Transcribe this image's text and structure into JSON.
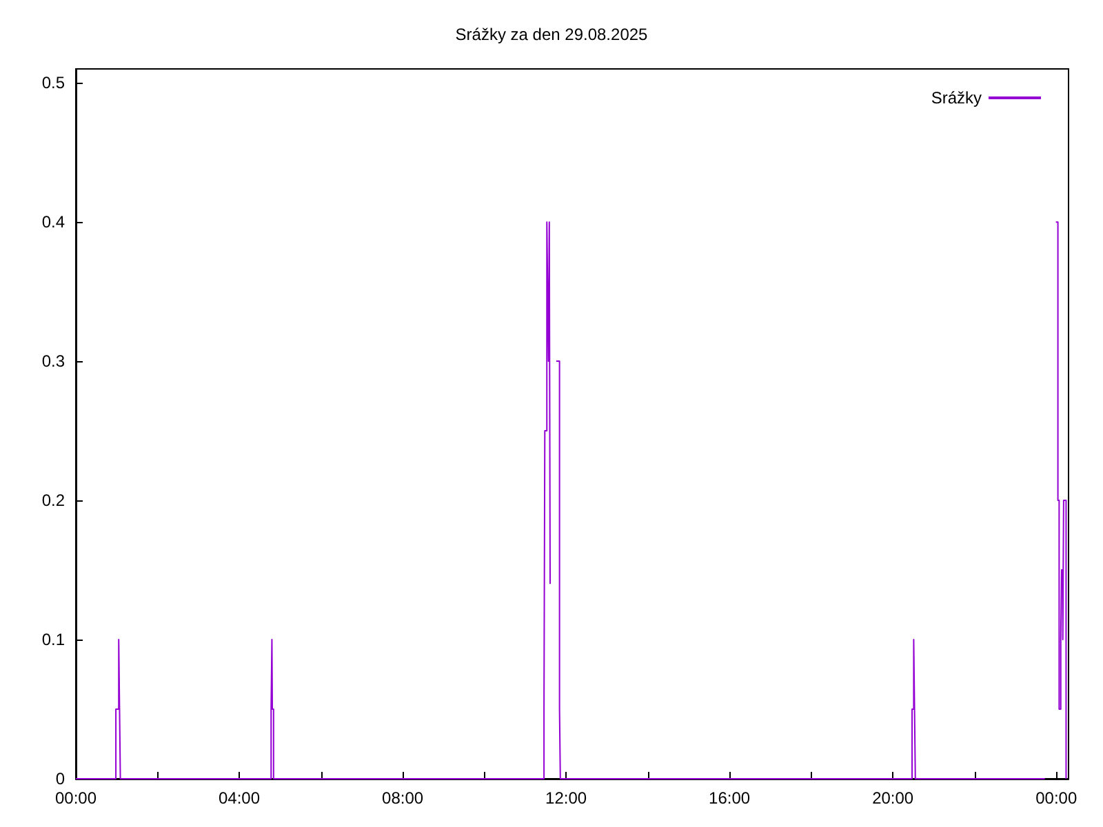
{
  "chart_data": {
    "type": "step",
    "title": "Srážky za den 29.08.2025",
    "x": [
      0,
      0.98,
      1.05,
      1.07,
      1.09,
      4.78,
      4.8,
      4.81,
      4.84,
      11.46,
      11.48,
      11.53,
      11.55,
      11.57,
      11.59,
      11.61,
      11.63,
      11.76,
      11.84,
      11.86,
      20.47,
      20.51,
      20.53,
      20.55,
      23.72,
      23.99,
      24.04,
      24.07,
      24.11,
      24.13,
      24.16,
      24.18,
      24.24
    ],
    "series": [
      {
        "name": "Srážky",
        "color": "#9400d3",
        "values": [
          0,
          0.05,
          0.1,
          0.05,
          0,
          0.05,
          0.1,
          0.05,
          0,
          0.05,
          0.25,
          0.4,
          0.35,
          0.3,
          0.4,
          0.14,
          null,
          0.3,
          0.05,
          0,
          0.05,
          0.1,
          0.05,
          0,
          null,
          0.4,
          0.2,
          0.05,
          0.1,
          0.15,
          0.1,
          0.2,
          0
        ]
      }
    ],
    "xlim": [
      0,
      24.3
    ],
    "xticks": [
      {
        "value": 0,
        "label": "00:00"
      },
      {
        "value": 2,
        "label": null
      },
      {
        "value": 4,
        "label": "04:00"
      },
      {
        "value": 6,
        "label": null
      },
      {
        "value": 8,
        "label": "08:00"
      },
      {
        "value": 10,
        "label": null
      },
      {
        "value": 12,
        "label": "12:00"
      },
      {
        "value": 14,
        "label": null
      },
      {
        "value": 16,
        "label": "16:00"
      },
      {
        "value": 18,
        "label": null
      },
      {
        "value": 20,
        "label": "20:00"
      },
      {
        "value": 22,
        "label": null
      },
      {
        "value": 24,
        "label": "00:00"
      }
    ],
    "ylim": [
      0,
      0.51
    ],
    "yticks": [
      0,
      0.1,
      0.2,
      0.3,
      0.4,
      0.5
    ],
    "grid": false,
    "legend": "top right",
    "marker": "none",
    "line_style": "solid"
  }
}
